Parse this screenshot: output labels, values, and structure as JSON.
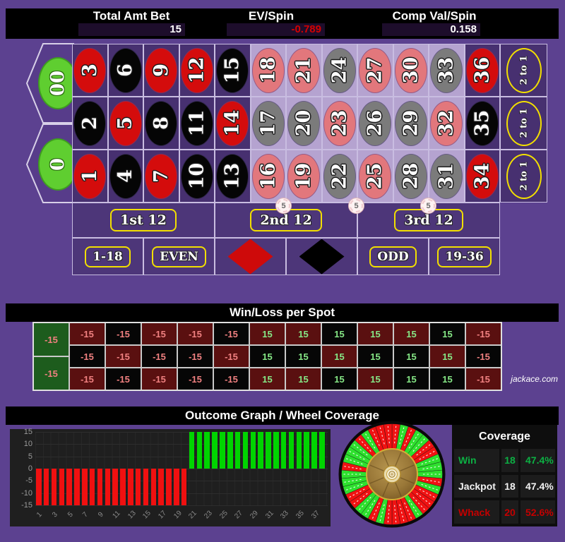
{
  "header": {
    "total_amt_bet_label": "Total Amt Bet",
    "total_amt_bet_value": "15",
    "ev_per_spin_label": "EV/Spin",
    "ev_per_spin_value": "-0.789",
    "comp_val_per_spin_label": "Comp Val/Spin",
    "comp_val_per_spin_value": "0.158",
    "negative_value_color": "#d50000"
  },
  "table": {
    "zeros": [
      "00",
      "0"
    ],
    "rows": [
      [
        {
          "n": "3",
          "c": "red"
        },
        {
          "n": "6",
          "c": "black"
        },
        {
          "n": "9",
          "c": "red"
        },
        {
          "n": "12",
          "c": "red"
        },
        {
          "n": "15",
          "c": "black"
        },
        {
          "n": "18",
          "c": "red"
        },
        {
          "n": "21",
          "c": "red"
        },
        {
          "n": "24",
          "c": "black"
        },
        {
          "n": "27",
          "c": "red"
        },
        {
          "n": "30",
          "c": "red"
        },
        {
          "n": "33",
          "c": "black"
        },
        {
          "n": "36",
          "c": "red"
        }
      ],
      [
        {
          "n": "2",
          "c": "black"
        },
        {
          "n": "5",
          "c": "red"
        },
        {
          "n": "8",
          "c": "black"
        },
        {
          "n": "11",
          "c": "black"
        },
        {
          "n": "14",
          "c": "red"
        },
        {
          "n": "17",
          "c": "black"
        },
        {
          "n": "20",
          "c": "black"
        },
        {
          "n": "23",
          "c": "red"
        },
        {
          "n": "26",
          "c": "black"
        },
        {
          "n": "29",
          "c": "black"
        },
        {
          "n": "32",
          "c": "red"
        },
        {
          "n": "35",
          "c": "black"
        }
      ],
      [
        {
          "n": "1",
          "c": "red"
        },
        {
          "n": "4",
          "c": "black"
        },
        {
          "n": "7",
          "c": "red"
        },
        {
          "n": "10",
          "c": "black"
        },
        {
          "n": "13",
          "c": "black"
        },
        {
          "n": "16",
          "c": "red"
        },
        {
          "n": "19",
          "c": "red"
        },
        {
          "n": "22",
          "c": "black"
        },
        {
          "n": "25",
          "c": "red"
        },
        {
          "n": "28",
          "c": "black"
        },
        {
          "n": "31",
          "c": "black"
        },
        {
          "n": "34",
          "c": "red"
        }
      ]
    ],
    "covered_numbers": [
      "16",
      "17",
      "18",
      "19",
      "20",
      "21",
      "22",
      "23",
      "24",
      "25",
      "26",
      "27",
      "28",
      "29",
      "30",
      "31",
      "32",
      "33"
    ],
    "column_bet_label": "2 to 1",
    "dozens": [
      "1st 12",
      "2nd 12",
      "3rd 12"
    ],
    "outside": [
      {
        "label": "1-18"
      },
      {
        "label": "EVEN"
      },
      {
        "diamond": "red"
      },
      {
        "diamond": "black"
      },
      {
        "label": "ODD"
      },
      {
        "label": "19-36"
      }
    ],
    "chips": [
      {
        "value": "5"
      },
      {
        "value": "5"
      },
      {
        "value": "5"
      }
    ],
    "colors": {
      "red": "#d40c0c",
      "black": "#050505",
      "faded_red": "#e2777c",
      "faded_black": "#7b7b7b",
      "green": "#5fce30",
      "covered_bg": "#b5a3d0",
      "cell_bg": "#473070",
      "yellow": "#f2df00"
    }
  },
  "winloss": {
    "title": "Win/Loss per Spot",
    "zero_values": [
      "-15",
      "-15"
    ],
    "rows": [
      [
        {
          "v": "-15",
          "c": "r"
        },
        {
          "v": "-15",
          "c": "b"
        },
        {
          "v": "-15",
          "c": "r"
        },
        {
          "v": "-15",
          "c": "r"
        },
        {
          "v": "-15",
          "c": "b"
        },
        {
          "v": "15",
          "c": "r"
        },
        {
          "v": "15",
          "c": "r"
        },
        {
          "v": "15",
          "c": "b"
        },
        {
          "v": "15",
          "c": "r"
        },
        {
          "v": "15",
          "c": "r"
        },
        {
          "v": "15",
          "c": "b"
        },
        {
          "v": "-15",
          "c": "r"
        }
      ],
      [
        {
          "v": "-15",
          "c": "b"
        },
        {
          "v": "-15",
          "c": "r"
        },
        {
          "v": "-15",
          "c": "b"
        },
        {
          "v": "-15",
          "c": "b"
        },
        {
          "v": "-15",
          "c": "r"
        },
        {
          "v": "15",
          "c": "b"
        },
        {
          "v": "15",
          "c": "b"
        },
        {
          "v": "15",
          "c": "r"
        },
        {
          "v": "15",
          "c": "b"
        },
        {
          "v": "15",
          "c": "b"
        },
        {
          "v": "15",
          "c": "r"
        },
        {
          "v": "-15",
          "c": "b"
        }
      ],
      [
        {
          "v": "-15",
          "c": "r"
        },
        {
          "v": "-15",
          "c": "b"
        },
        {
          "v": "-15",
          "c": "r"
        },
        {
          "v": "-15",
          "c": "b"
        },
        {
          "v": "-15",
          "c": "b"
        },
        {
          "v": "15",
          "c": "r"
        },
        {
          "v": "15",
          "c": "r"
        },
        {
          "v": "15",
          "c": "b"
        },
        {
          "v": "15",
          "c": "r"
        },
        {
          "v": "15",
          "c": "b"
        },
        {
          "v": "15",
          "c": "b"
        },
        {
          "v": "-15",
          "c": "r"
        }
      ]
    ]
  },
  "footer_link": "jackace.com",
  "outcome": {
    "title": "Outcome Graph / Wheel Coverage"
  },
  "chart_data": {
    "type": "bar",
    "title": "Outcome Graph",
    "x": [
      1,
      2,
      3,
      4,
      5,
      6,
      7,
      8,
      9,
      10,
      11,
      12,
      13,
      14,
      15,
      16,
      17,
      18,
      19,
      20,
      21,
      22,
      23,
      24,
      25,
      26,
      27,
      28,
      29,
      30,
      31,
      32,
      33,
      34,
      35,
      36,
      37,
      38
    ],
    "values": [
      -15,
      -15,
      -15,
      -15,
      -15,
      -15,
      -15,
      -15,
      -15,
      -15,
      -15,
      -15,
      -15,
      -15,
      -15,
      -15,
      -15,
      -15,
      -15,
      -15,
      15,
      15,
      15,
      15,
      15,
      15,
      15,
      15,
      15,
      15,
      15,
      15,
      15,
      15,
      15,
      15,
      15,
      15
    ],
    "bar_colors": {
      "negative": "#f01010",
      "positive": "#00d400"
    },
    "ylim": [
      -15,
      15
    ],
    "yticks": [
      "15",
      "10",
      "5",
      "0",
      "-5",
      "-10",
      "-15"
    ],
    "xtick_labels": [
      "1",
      "3",
      "5",
      "7",
      "9",
      "11",
      "13",
      "15",
      "17",
      "19",
      "21",
      "23",
      "25",
      "27",
      "29",
      "31",
      "33",
      "35",
      "37"
    ],
    "grid": true,
    "background": "#1f1f1f"
  },
  "wheel": {
    "order": [
      "0",
      "28",
      "9",
      "26",
      "30",
      "11",
      "7",
      "20",
      "32",
      "17",
      "5",
      "22",
      "34",
      "15",
      "3",
      "24",
      "36",
      "13",
      "1",
      "00",
      "27",
      "10",
      "25",
      "29",
      "12",
      "8",
      "19",
      "31",
      "18",
      "6",
      "21",
      "33",
      "16",
      "4",
      "23",
      "35",
      "14",
      "2"
    ],
    "covered_color": "#2ee02e",
    "uncovered_color": "#f01212"
  },
  "coverage": {
    "title": "Coverage",
    "rows": [
      {
        "label": "Win",
        "count": "18",
        "pct": "47.4%",
        "color": "#0cb043"
      },
      {
        "label": "Jackpot",
        "count": "18",
        "pct": "47.4%",
        "color": "#f2f2f2"
      },
      {
        "label": "Whack",
        "count": "20",
        "pct": "52.6%",
        "color": "#c40000"
      }
    ]
  }
}
